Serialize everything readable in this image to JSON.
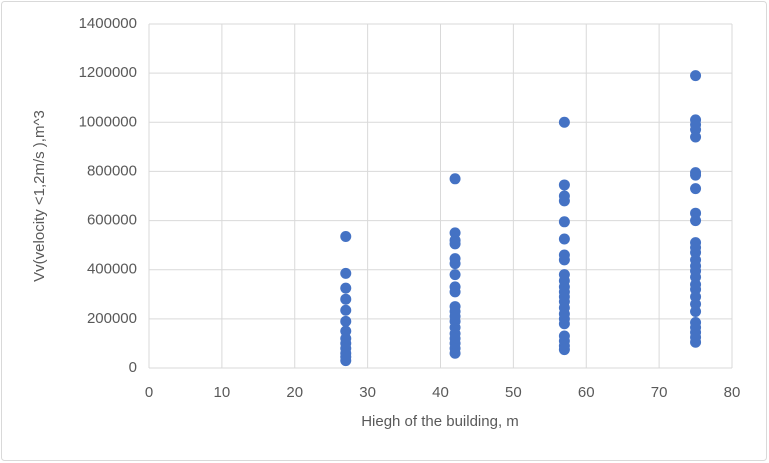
{
  "chart_data": {
    "type": "scatter",
    "x_label": "Hiegh of the building, m",
    "y_label": "Vv(velocity <1,2m/s ),m^3",
    "color": "#4472c4",
    "grid": true,
    "xlim": [
      0,
      80
    ],
    "xticks": [
      0,
      10,
      20,
      30,
      40,
      50,
      60,
      70,
      80
    ],
    "ylim": [
      0,
      1400000
    ],
    "yticks": [
      0,
      200000,
      400000,
      600000,
      800000,
      1000000,
      1200000,
      1400000
    ],
    "x": [
      27,
      27,
      27,
      27,
      27,
      27,
      27,
      27,
      27,
      27,
      27,
      27,
      27,
      42,
      42,
      42,
      42,
      42,
      42,
      42,
      42,
      42,
      42,
      42,
      42,
      42,
      42,
      42,
      42,
      42,
      42,
      42,
      57,
      57,
      57,
      57,
      57,
      57,
      57,
      57,
      57,
      57,
      57,
      57,
      57,
      57,
      57,
      57,
      57,
      57,
      57,
      57,
      57,
      57,
      75,
      75,
      75,
      75,
      75,
      75,
      75,
      75,
      75,
      75,
      75,
      75,
      75,
      75,
      75,
      75,
      75,
      75,
      75,
      75,
      75,
      75,
      75,
      75,
      75,
      75,
      75
    ],
    "values": [
      535000,
      385000,
      325000,
      280000,
      235000,
      190000,
      150000,
      120000,
      100000,
      80000,
      60000,
      45000,
      30000,
      770000,
      550000,
      520000,
      505000,
      445000,
      425000,
      380000,
      330000,
      310000,
      250000,
      230000,
      210000,
      190000,
      165000,
      140000,
      120000,
      100000,
      80000,
      60000,
      1000000,
      745000,
      700000,
      680000,
      595000,
      525000,
      460000,
      440000,
      380000,
      355000,
      330000,
      310000,
      290000,
      270000,
      245000,
      220000,
      200000,
      180000,
      130000,
      110000,
      90000,
      75000,
      1190000,
      1010000,
      990000,
      970000,
      940000,
      795000,
      785000,
      730000,
      630000,
      600000,
      510000,
      490000,
      470000,
      440000,
      415000,
      395000,
      370000,
      340000,
      320000,
      290000,
      260000,
      230000,
      185000,
      165000,
      145000,
      125000,
      105000
    ]
  }
}
